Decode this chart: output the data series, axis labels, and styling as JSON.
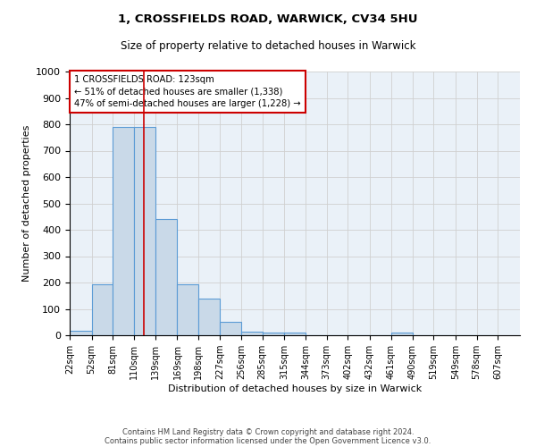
{
  "title1": "1, CROSSFIELDS ROAD, WARWICK, CV34 5HU",
  "title2": "Size of property relative to detached houses in Warwick",
  "xlabel": "Distribution of detached houses by size in Warwick",
  "ylabel": "Number of detached properties",
  "bin_labels": [
    "22sqm",
    "52sqm",
    "81sqm",
    "110sqm",
    "139sqm",
    "169sqm",
    "198sqm",
    "227sqm",
    "256sqm",
    "285sqm",
    "315sqm",
    "344sqm",
    "373sqm",
    "402sqm",
    "432sqm",
    "461sqm",
    "490sqm",
    "519sqm",
    "549sqm",
    "578sqm",
    "607sqm"
  ],
  "bin_edges": [
    22,
    52,
    81,
    110,
    139,
    169,
    198,
    227,
    256,
    285,
    315,
    344,
    373,
    402,
    432,
    461,
    490,
    519,
    549,
    578,
    607
  ],
  "bar_heights": [
    18,
    193,
    790,
    790,
    440,
    193,
    140,
    50,
    15,
    10,
    10,
    0,
    0,
    0,
    0,
    10,
    0,
    0,
    0,
    0
  ],
  "bar_color": "#c9d9e8",
  "bar_edge_color": "#5b9bd5",
  "grid_color": "#d0d0d0",
  "bg_color": "#eaf1f8",
  "vline_x": 123,
  "vline_color": "#cc0000",
  "annotation_line1": "1 CROSSFIELDS ROAD: 123sqm",
  "annotation_line2": "← 51% of detached houses are smaller (1,338)",
  "annotation_line3": "47% of semi-detached houses are larger (1,228) →",
  "annotation_box_color": "#cc0000",
  "ylim": [
    0,
    1000
  ],
  "yticks": [
    0,
    100,
    200,
    300,
    400,
    500,
    600,
    700,
    800,
    900,
    1000
  ],
  "footer1": "Contains HM Land Registry data © Crown copyright and database right 2024.",
  "footer2": "Contains public sector information licensed under the Open Government Licence v3.0."
}
